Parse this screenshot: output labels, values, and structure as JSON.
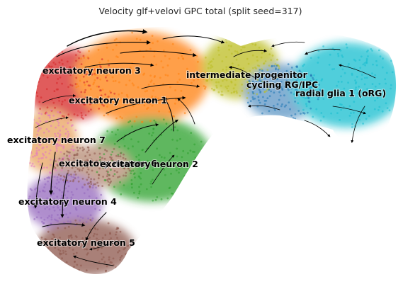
{
  "chart_data": {
    "type": "scatter",
    "title": "Velocity glf+velovi GPC total (split seed=317)",
    "xlabel": "",
    "ylabel": "",
    "grid": false,
    "axes_visible": false,
    "legend": "on data",
    "overlay": "velocity streamlines",
    "colors": {
      "excitatory neuron 3": "#d62728",
      "excitatory neuron 1": "#ff7f0e",
      "excitatory neuron 7": "#e377c2",
      "excitatory neuron 6": "#8c564b",
      "excitatory neuron 2": "#2ca02c",
      "excitatory neuron 4": "#9467bd",
      "excitatory neuron 5": "#8c564b",
      "intermediate progenitor": "#bcbd22",
      "cycling RG/IPC": "#1f77b4",
      "radial glia 1 (oRG)": "#17becf"
    },
    "labels": [
      "excitatory neuron 3",
      "excitatory neuron 1",
      "excitatory neuron 7",
      "excitatory neuron 6",
      "excitatory neuron 2",
      "excitatory neuron 4",
      "excitatory neuron 5",
      "intermediate progenitor",
      "cycling RG/IPC",
      "radial glia 1 (oRG)"
    ]
  }
}
